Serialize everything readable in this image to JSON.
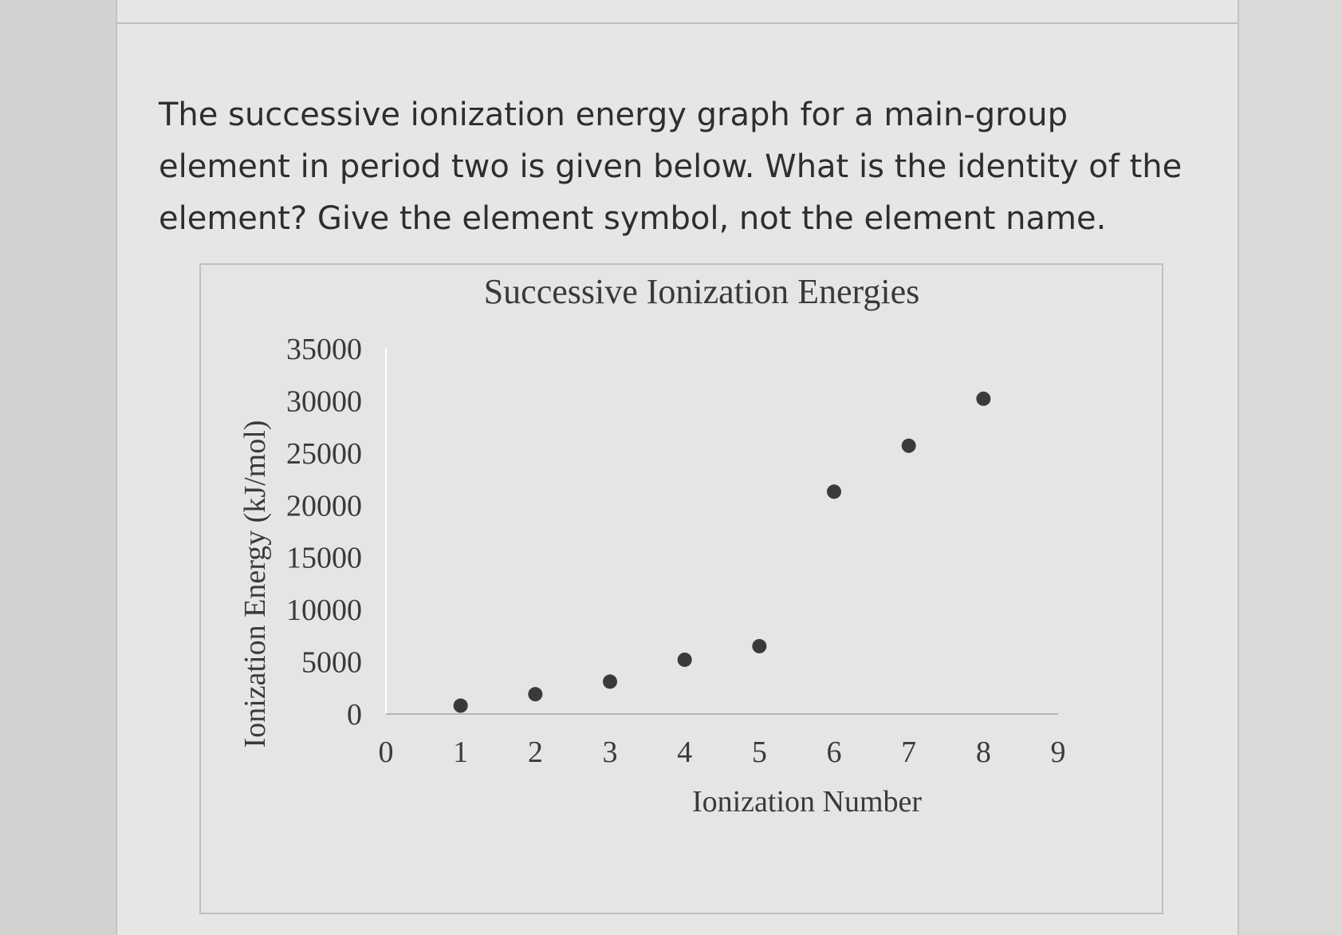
{
  "question": {
    "text": "The successive ionization energy graph for a main-group element in period two is given below. What is the identity of the element? Give the element symbol, not the element name."
  },
  "chart_data": {
    "type": "scatter",
    "title": "Successive Ionization Energies",
    "xlabel": "Ionization Number",
    "ylabel": "Ionization Energy (kJ/mol)",
    "xlim": [
      0,
      9
    ],
    "ylim": [
      0,
      35000
    ],
    "xticks": [
      "0",
      "1",
      "2",
      "3",
      "4",
      "5",
      "6",
      "7",
      "8",
      "9"
    ],
    "yticks": [
      "35000",
      "30000",
      "25000",
      "20000",
      "15000",
      "10000",
      "5000",
      "0"
    ],
    "grid": false,
    "legend": "none",
    "marker_color": "#3a3a3a",
    "points": [
      {
        "x": 1,
        "y": 800
      },
      {
        "x": 2,
        "y": 1900
      },
      {
        "x": 3,
        "y": 3100
      },
      {
        "x": 4,
        "y": 5200
      },
      {
        "x": 5,
        "y": 6500
      },
      {
        "x": 6,
        "y": 21300
      },
      {
        "x": 7,
        "y": 25700
      },
      {
        "x": 8,
        "y": 30200
      }
    ]
  }
}
